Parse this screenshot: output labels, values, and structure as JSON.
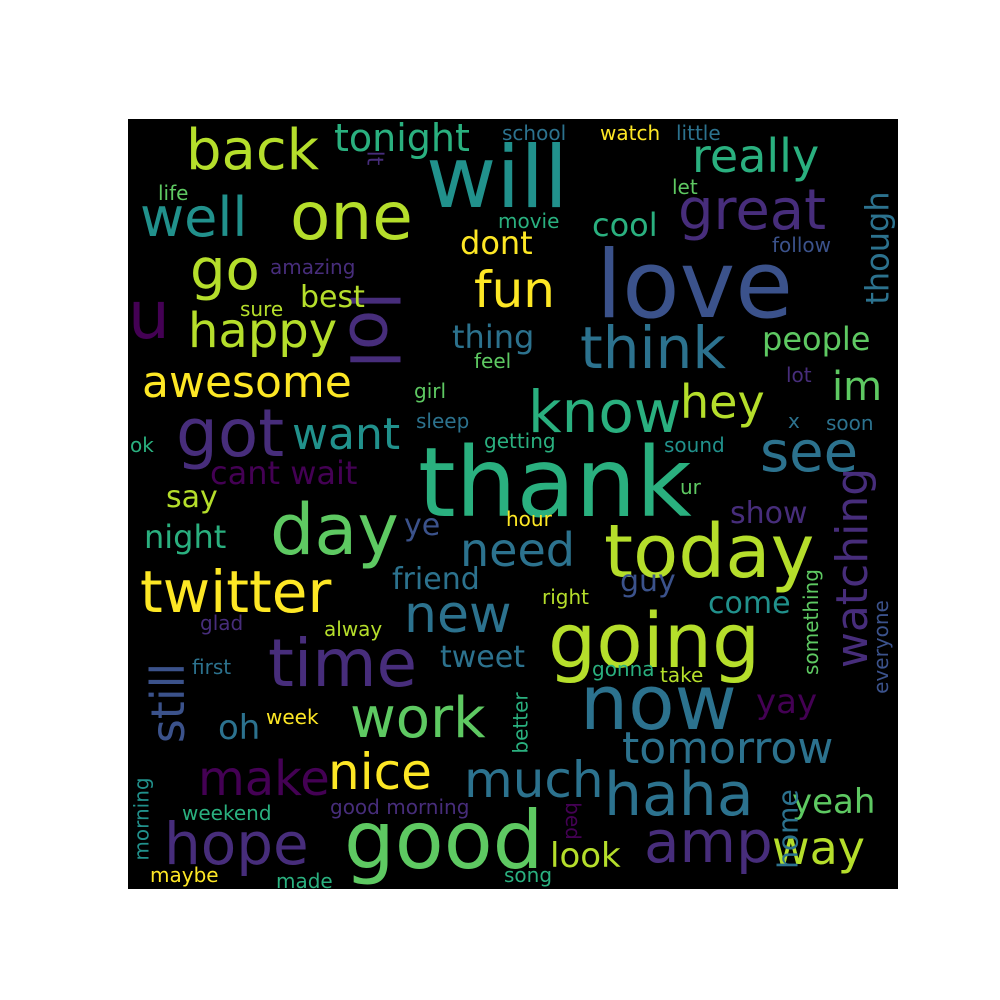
{
  "palette": {
    "background": "#000000",
    "page": "#ffffff",
    "yellow": "#fde725",
    "lime": "#b5de2b",
    "green": "#5ec962",
    "aqua": "#2ab07f",
    "teal": "#21918c",
    "cerulean": "#2c728e",
    "indigo": "#3b528b",
    "violet": "#472d7b",
    "purple": "#440154"
  },
  "words": [
    {
      "id": "thank",
      "text": "thank",
      "color": "#2ab07f"
    },
    {
      "id": "love",
      "text": "love",
      "color": "#3b528b"
    },
    {
      "id": "will",
      "text": "will",
      "color": "#21918c"
    },
    {
      "id": "good",
      "text": "good",
      "color": "#5ec962"
    },
    {
      "id": "today",
      "text": "today",
      "color": "#b5de2b"
    },
    {
      "id": "going",
      "text": "going",
      "color": "#b5de2b"
    },
    {
      "id": "now",
      "text": "now",
      "color": "#2c728e"
    },
    {
      "id": "day",
      "text": "day",
      "color": "#5ec962"
    },
    {
      "id": "lol",
      "text": "lol",
      "color": "#472d7b"
    },
    {
      "id": "time",
      "text": "time",
      "color": "#472d7b"
    },
    {
      "id": "one",
      "text": "one",
      "color": "#b5de2b"
    },
    {
      "id": "got",
      "text": "got",
      "color": "#472d7b"
    },
    {
      "id": "know",
      "text": "know",
      "color": "#2ab07f"
    },
    {
      "id": "think",
      "text": "think",
      "color": "#2c728e"
    },
    {
      "id": "haha",
      "text": "haha",
      "color": "#2c728e"
    },
    {
      "id": "twitter",
      "text": "twitter",
      "color": "#fde725"
    },
    {
      "id": "hope",
      "text": "hope",
      "color": "#472d7b"
    },
    {
      "id": "amp",
      "text": "amp",
      "color": "#472d7b"
    },
    {
      "id": "back",
      "text": "back",
      "color": "#b5de2b"
    },
    {
      "id": "well",
      "text": "well",
      "color": "#21918c"
    },
    {
      "id": "great",
      "text": "great",
      "color": "#472d7b"
    },
    {
      "id": "see",
      "text": "see",
      "color": "#2c728e"
    },
    {
      "id": "work",
      "text": "work",
      "color": "#5ec962"
    },
    {
      "id": "new",
      "text": "new",
      "color": "#2c728e"
    },
    {
      "id": "nice",
      "text": "nice",
      "color": "#fde725"
    },
    {
      "id": "much",
      "text": "much",
      "color": "#2c728e"
    },
    {
      "id": "make",
      "text": "make",
      "color": "#440154"
    },
    {
      "id": "go",
      "text": "go",
      "color": "#b5de2b"
    },
    {
      "id": "u",
      "text": "u",
      "color": "#440154"
    },
    {
      "id": "happy",
      "text": "happy",
      "color": "#b5de2b"
    },
    {
      "id": "awesome",
      "text": "awesome",
      "color": "#fde725"
    },
    {
      "id": "really",
      "text": "really",
      "color": "#2ab07f"
    },
    {
      "id": "tomorrow",
      "text": "tomorrow",
      "color": "#2c728e"
    },
    {
      "id": "need",
      "text": "need",
      "color": "#2c728e"
    },
    {
      "id": "fun",
      "text": "fun",
      "color": "#fde725"
    },
    {
      "id": "hey",
      "text": "hey",
      "color": "#b5de2b"
    },
    {
      "id": "want",
      "text": "want",
      "color": "#21918c"
    },
    {
      "id": "watching",
      "text": "watching",
      "color": "#472d7b"
    },
    {
      "id": "still",
      "text": "still",
      "color": "#3b528b"
    },
    {
      "id": "way",
      "text": "way",
      "color": "#b5de2b"
    },
    {
      "id": "tonight",
      "text": "tonight",
      "color": "#2ab07f"
    },
    {
      "id": "im",
      "text": "im",
      "color": "#5ec962"
    },
    {
      "id": "though",
      "text": "though",
      "color": "#2c728e"
    },
    {
      "id": "yeah",
      "text": "yeah",
      "color": "#5ec962"
    },
    {
      "id": "look",
      "text": "look",
      "color": "#b5de2b"
    },
    {
      "id": "best",
      "text": "best",
      "color": "#b5de2b"
    },
    {
      "id": "dont",
      "text": "dont",
      "color": "#fde725"
    },
    {
      "id": "cool",
      "text": "cool",
      "color": "#2ab07f"
    },
    {
      "id": "people",
      "text": "people",
      "color": "#5ec962"
    },
    {
      "id": "thing",
      "text": "thing",
      "color": "#2c728e"
    },
    {
      "id": "cant-wait",
      "text": "cant wait",
      "color": "#440154"
    },
    {
      "id": "night",
      "text": "night",
      "color": "#2ab07f"
    },
    {
      "id": "say",
      "text": "say",
      "color": "#b5de2b"
    },
    {
      "id": "friend",
      "text": "friend",
      "color": "#2c728e"
    },
    {
      "id": "tweet",
      "text": "tweet",
      "color": "#2c728e"
    },
    {
      "id": "oh",
      "text": "oh",
      "color": "#2c728e"
    },
    {
      "id": "show",
      "text": "show",
      "color": "#472d7b"
    },
    {
      "id": "come",
      "text": "come",
      "color": "#21918c"
    },
    {
      "id": "guy",
      "text": "guy",
      "color": "#3b528b"
    },
    {
      "id": "yay",
      "text": "yay",
      "color": "#440154"
    },
    {
      "id": "home",
      "text": "home",
      "color": "#2c728e"
    },
    {
      "id": "ye",
      "text": "ye",
      "color": "#3b528b"
    },
    {
      "id": "school",
      "text": "school",
      "color": "#2c728e"
    },
    {
      "id": "watch",
      "text": "watch",
      "color": "#fde725"
    },
    {
      "id": "little",
      "text": "little",
      "color": "#2c728e"
    },
    {
      "id": "lt",
      "text": "lt",
      "color": "#472d7b"
    },
    {
      "id": "life",
      "text": "life",
      "color": "#5ec962"
    },
    {
      "id": "let",
      "text": "let",
      "color": "#5ec962"
    },
    {
      "id": "movie",
      "text": "movie",
      "color": "#2ab07f"
    },
    {
      "id": "follow",
      "text": "follow",
      "color": "#3b528b"
    },
    {
      "id": "amazing",
      "text": "amazing",
      "color": "#472d7b"
    },
    {
      "id": "sure",
      "text": "sure",
      "color": "#b5de2b"
    },
    {
      "id": "feel",
      "text": "feel",
      "color": "#5ec962"
    },
    {
      "id": "girl",
      "text": "girl",
      "color": "#5ec962"
    },
    {
      "id": "lot",
      "text": "lot",
      "color": "#472d7b"
    },
    {
      "id": "sleep",
      "text": "sleep",
      "color": "#2c728e"
    },
    {
      "id": "x",
      "text": "x",
      "color": "#2c728e"
    },
    {
      "id": "soon",
      "text": "soon",
      "color": "#2c728e"
    },
    {
      "id": "ok",
      "text": "ok",
      "color": "#2ab07f"
    },
    {
      "id": "getting",
      "text": "getting",
      "color": "#2ab07f"
    },
    {
      "id": "sound",
      "text": "sound",
      "color": "#21918c"
    },
    {
      "id": "ur",
      "text": "ur",
      "color": "#5ec962"
    },
    {
      "id": "hour",
      "text": "hour",
      "color": "#fde725"
    },
    {
      "id": "something",
      "text": "something",
      "color": "#5ec962"
    },
    {
      "id": "right",
      "text": "right",
      "color": "#b5de2b"
    },
    {
      "id": "everyone",
      "text": "everyone",
      "color": "#3b528b"
    },
    {
      "id": "glad",
      "text": "glad",
      "color": "#472d7b"
    },
    {
      "id": "alway",
      "text": "alway",
      "color": "#b5de2b"
    },
    {
      "id": "first",
      "text": "first",
      "color": "#2c728e"
    },
    {
      "id": "gonna",
      "text": "gonna",
      "color": "#2ab07f"
    },
    {
      "id": "take",
      "text": "take",
      "color": "#b5de2b"
    },
    {
      "id": "week",
      "text": "week",
      "color": "#fde725"
    },
    {
      "id": "better",
      "text": "better",
      "color": "#2ab07f"
    },
    {
      "id": "morning-vertical",
      "text": "morning",
      "color": "#21918c"
    },
    {
      "id": "weekend",
      "text": "weekend",
      "color": "#2ab07f"
    },
    {
      "id": "good-morning",
      "text": "good morning",
      "color": "#472d7b"
    },
    {
      "id": "bed",
      "text": "bed",
      "color": "#440154"
    },
    {
      "id": "maybe",
      "text": "maybe",
      "color": "#fde725"
    },
    {
      "id": "made",
      "text": "made",
      "color": "#2ab07f"
    },
    {
      "id": "song",
      "text": "song",
      "color": "#2ab07f"
    }
  ]
}
